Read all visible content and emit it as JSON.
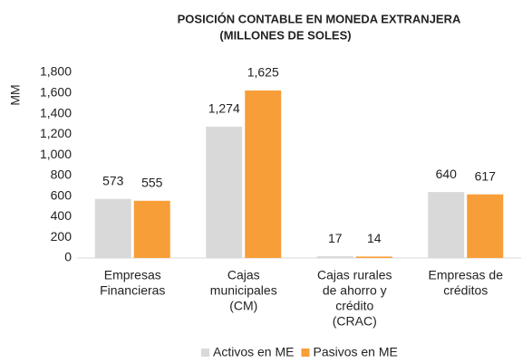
{
  "chart_data": {
    "type": "bar",
    "title": [
      "POSICIÓN CONTABLE EN MONEDA EXTRANJERA",
      "(MILLONES DE SOLES)"
    ],
    "y_label": "MM",
    "categories": [
      [
        "Empresas",
        "Financieras"
      ],
      [
        "Cajas",
        "municipales",
        "(CM)"
      ],
      [
        "Cajas rurales",
        "de ahorro y",
        "crédito",
        "(CRAC)"
      ],
      [
        "Empresas de",
        "créditos"
      ]
    ],
    "series": [
      {
        "name": "Activos en ME",
        "color": "#d9d9d9",
        "values": [
          573,
          1274,
          17,
          640
        ],
        "value_labels": [
          "573",
          "1,274",
          "17",
          "640"
        ]
      },
      {
        "name": "Pasivos en ME",
        "color": "#f79e38",
        "values": [
          555,
          1625,
          14,
          617
        ],
        "value_labels": [
          "555",
          "1,625",
          "14",
          "617"
        ]
      }
    ],
    "ylim": [
      0,
      1800
    ],
    "yticks": [
      0,
      200,
      400,
      600,
      800,
      {
        "value": 1000,
        "label": "1,000"
      },
      {
        "value": 1200,
        "label": "1,200"
      },
      {
        "value": 1400,
        "label": "1,400"
      },
      {
        "value": 1600,
        "label": "1,600"
      },
      {
        "value": 1800,
        "label": "1,800"
      }
    ],
    "grid": false,
    "legend": "bottom"
  }
}
